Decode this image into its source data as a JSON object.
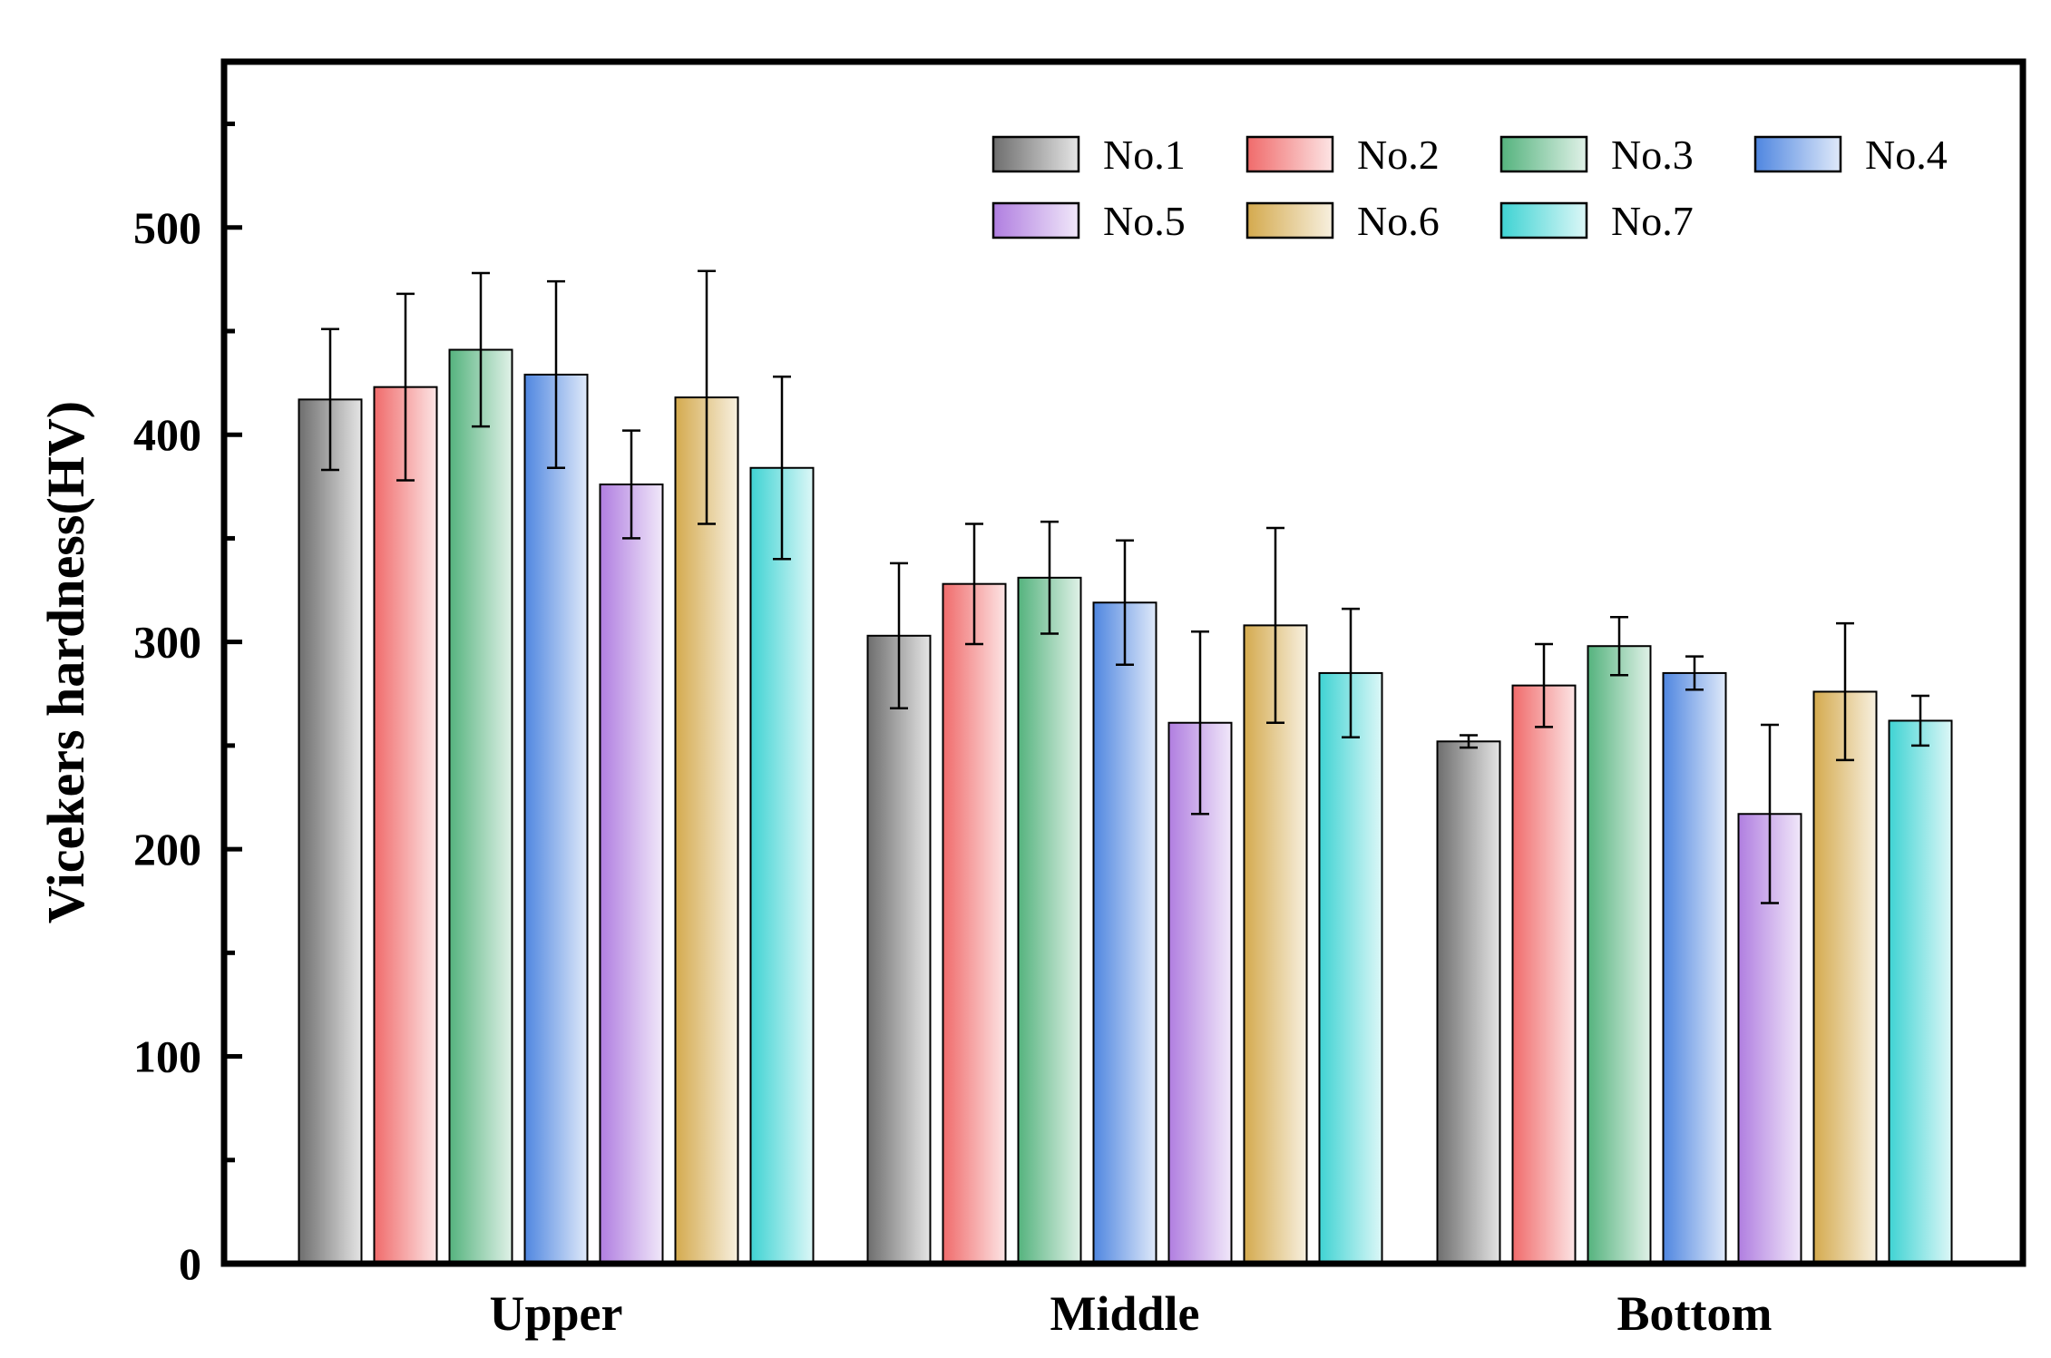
{
  "chart_data": {
    "type": "bar",
    "title": "",
    "xlabel": "",
    "ylabel": "Vicekers hardness(HV)",
    "ylim": [
      0,
      580
    ],
    "yticks": [
      0,
      100,
      200,
      300,
      400,
      500
    ],
    "categories": [
      "Upper",
      "Middle",
      "Bottom"
    ],
    "series": [
      {
        "name": "No.1",
        "color": "#6e6e6e",
        "values": [
          417,
          303,
          252
        ],
        "errors": [
          34,
          35,
          3
        ]
      },
      {
        "name": "No.2",
        "color": "#f06b6b",
        "values": [
          423,
          328,
          279
        ],
        "errors": [
          45,
          29,
          20
        ]
      },
      {
        "name": "No.3",
        "color": "#55b37e",
        "values": [
          441,
          331,
          298
        ],
        "errors": [
          37,
          27,
          14
        ]
      },
      {
        "name": "No.4",
        "color": "#4f86e0",
        "values": [
          429,
          319,
          285
        ],
        "errors": [
          45,
          30,
          8
        ]
      },
      {
        "name": "No.5",
        "color": "#b07ee0",
        "values": [
          376,
          261,
          217
        ],
        "errors": [
          26,
          44,
          43
        ]
      },
      {
        "name": "No.6",
        "color": "#d4aa4e",
        "values": [
          418,
          308,
          276
        ],
        "errors": [
          61,
          47,
          33
        ]
      },
      {
        "name": "No.7",
        "color": "#3fd3d3",
        "values": [
          384,
          285,
          262
        ],
        "errors": [
          44,
          31,
          12
        ]
      }
    ],
    "legend_position": "top-right",
    "grid": false
  }
}
